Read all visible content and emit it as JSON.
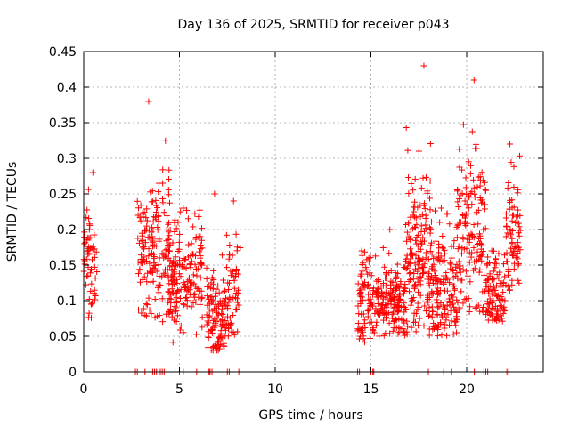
{
  "chart_data": {
    "type": "scatter",
    "title": "Day 136 of 2025, SRMTID for receiver p043",
    "xlabel": "GPS time / hours",
    "ylabel": "SRMTID / TECUs",
    "xlim": [
      0,
      24
    ],
    "ylim": [
      0,
      0.45
    ],
    "x_ticks": [
      0,
      5,
      10,
      15,
      20
    ],
    "x_tick_labels": [
      "0",
      "5",
      "10",
      "15",
      "20"
    ],
    "y_ticks": [
      0,
      0.05,
      0.1,
      0.15,
      0.2,
      0.25,
      0.3,
      0.35,
      0.4,
      0.45
    ],
    "y_tick_labels": [
      "0",
      "0.05",
      "0.1",
      "0.15",
      "0.2",
      "0.25",
      "0.3",
      "0.35",
      "0.4",
      "0.45"
    ],
    "grid": true,
    "marker": "+",
    "color": "#ff0000",
    "clusters": [
      {
        "x_start": 0.0,
        "x_end": 0.7,
        "y_center": 0.16,
        "y_spread": 0.04,
        "y_min": 0.07,
        "y_max": 0.28,
        "count": 60
      },
      {
        "x_start": 2.8,
        "x_end": 4.5,
        "y_center": 0.17,
        "y_spread": 0.045,
        "y_min": 0.07,
        "y_max": 0.38,
        "count": 170
      },
      {
        "x_start": 4.4,
        "x_end": 6.2,
        "y_center": 0.13,
        "y_spread": 0.04,
        "y_min": 0.03,
        "y_max": 0.23,
        "count": 170
      },
      {
        "x_start": 6.4,
        "x_end": 7.4,
        "y_center": 0.08,
        "y_spread": 0.035,
        "y_min": 0.03,
        "y_max": 0.25,
        "count": 110
      },
      {
        "x_start": 7.4,
        "x_end": 8.2,
        "y_center": 0.12,
        "y_spread": 0.04,
        "y_min": 0.05,
        "y_max": 0.24,
        "count": 60
      },
      {
        "x_start": 14.3,
        "x_end": 15.0,
        "y_center": 0.1,
        "y_spread": 0.035,
        "y_min": 0.04,
        "y_max": 0.17,
        "count": 70
      },
      {
        "x_start": 15.0,
        "x_end": 16.8,
        "y_center": 0.1,
        "y_spread": 0.03,
        "y_min": 0.05,
        "y_max": 0.2,
        "count": 180
      },
      {
        "x_start": 16.8,
        "x_end": 18.2,
        "y_center": 0.15,
        "y_spread": 0.065,
        "y_min": 0.05,
        "y_max": 0.43,
        "count": 180
      },
      {
        "x_start": 18.2,
        "x_end": 19.5,
        "y_center": 0.11,
        "y_spread": 0.04,
        "y_min": 0.05,
        "y_max": 0.23,
        "count": 140
      },
      {
        "x_start": 19.5,
        "x_end": 21.0,
        "y_center": 0.2,
        "y_spread": 0.065,
        "y_min": 0.08,
        "y_max": 0.41,
        "count": 150
      },
      {
        "x_start": 21.0,
        "x_end": 22.0,
        "y_center": 0.11,
        "y_spread": 0.03,
        "y_min": 0.07,
        "y_max": 0.17,
        "count": 100
      },
      {
        "x_start": 22.0,
        "x_end": 22.8,
        "y_center": 0.19,
        "y_spread": 0.045,
        "y_min": 0.11,
        "y_max": 0.32,
        "count": 80
      }
    ],
    "zero_points_x": [
      2.7,
      2.8,
      3.2,
      3.6,
      3.7,
      3.8,
      4.0,
      4.1,
      4.2,
      5.0,
      5.2,
      5.9,
      6.5,
      6.55,
      6.6,
      6.7,
      7.5,
      7.6,
      8.1,
      14.3,
      14.4,
      15.0,
      15.1,
      15.15,
      18.0,
      18.8,
      19.2,
      20.4,
      20.9,
      21.0,
      21.1,
      22.1,
      22.2
    ]
  }
}
